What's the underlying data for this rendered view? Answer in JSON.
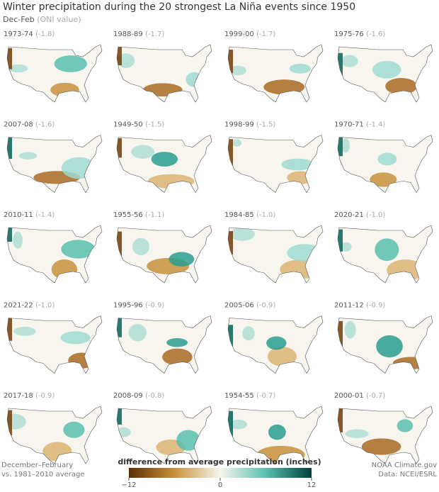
{
  "header": {
    "title": "Winter precipitation during the 20 strongest La Niña events since 1950",
    "subtitle": "Dec-Feb",
    "subtitle_note": "(ONI value)"
  },
  "panels": [
    {
      "years": "1973-74",
      "oni": "(-1.8)"
    },
    {
      "years": "1988-89",
      "oni": "(-1.7)"
    },
    {
      "years": "1999-00",
      "oni": "(-1.7)"
    },
    {
      "years": "1975-76",
      "oni": "(-1.6)"
    },
    {
      "years": "2007-08",
      "oni": "(-1.6)"
    },
    {
      "years": "1949-50",
      "oni": "(-1.5)"
    },
    {
      "years": "1998-99",
      "oni": "(-1.5)"
    },
    {
      "years": "1970-71",
      "oni": "(-1.4)"
    },
    {
      "years": "2010-11",
      "oni": "(-1.4)"
    },
    {
      "years": "1955-56",
      "oni": "(-1.1)"
    },
    {
      "years": "1984-85",
      "oni": "(-1.0)"
    },
    {
      "years": "2020-21",
      "oni": "(-1.0)"
    },
    {
      "years": "2021-22",
      "oni": "(-1.0)"
    },
    {
      "years": "1995-96",
      "oni": "(-0.9)"
    },
    {
      "years": "2005-06",
      "oni": "(-0.9)"
    },
    {
      "years": "2011-12",
      "oni": "(-0.9)"
    },
    {
      "years": "2017-18",
      "oni": "(-0.9)"
    },
    {
      "years": "2008-09",
      "oni": "(-0.8)"
    },
    {
      "years": "1954-55",
      "oni": "(-0.7)"
    },
    {
      "years": "2000-01",
      "oni": "(-0.7)"
    }
  ],
  "legend": {
    "title": "difference from average precipitation (inches)",
    "lim": [
      -12,
      12
    ],
    "ticks": [
      {
        "value": -12,
        "label": "−12"
      },
      0,
      12
    ]
  },
  "footer": {
    "left": [
      "December–February",
      "vs. 1981–2010 average"
    ],
    "right": [
      "NOAA Climate.gov",
      "Data: NCEI/ESRL"
    ]
  }
}
